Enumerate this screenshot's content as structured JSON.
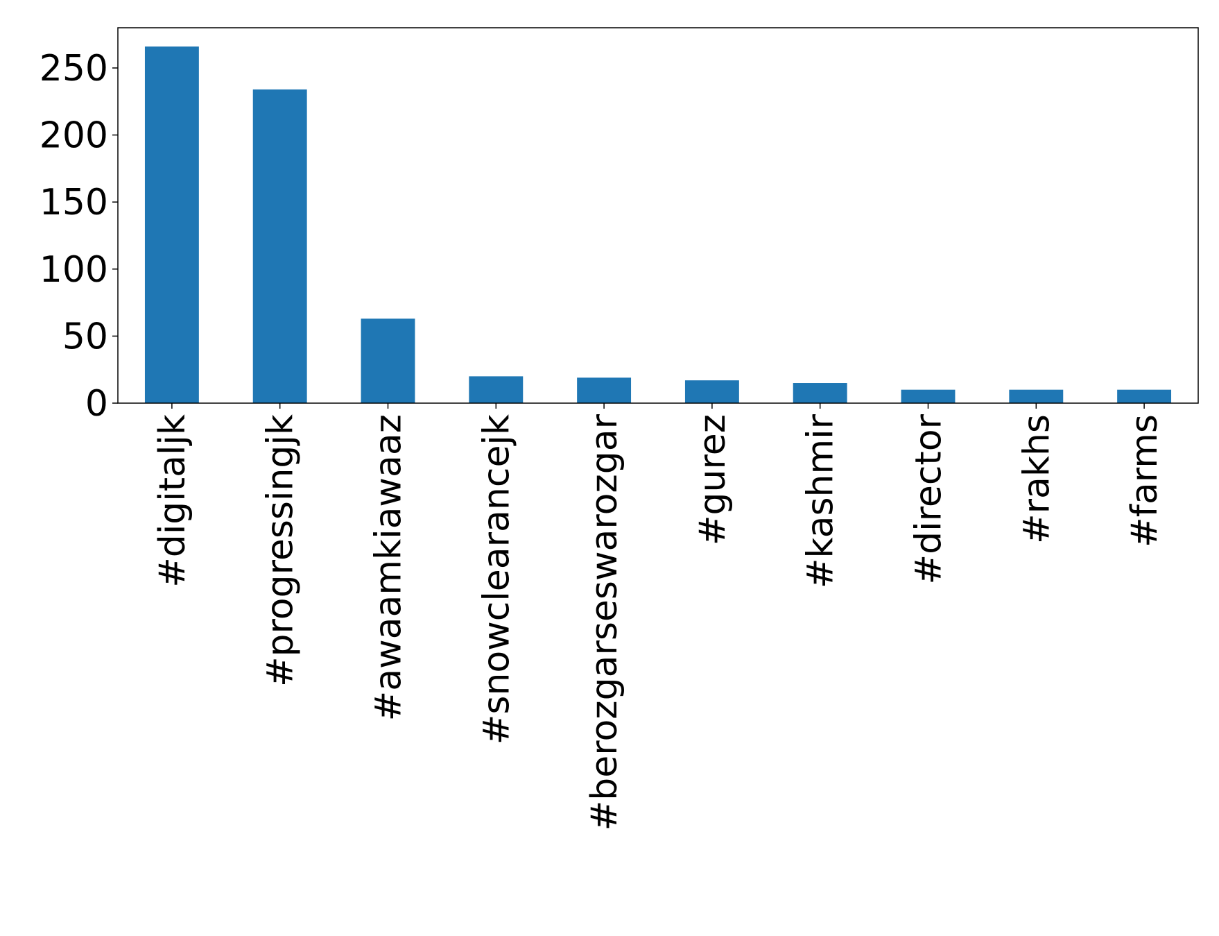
{
  "chart_data": {
    "type": "bar",
    "title": "",
    "xlabel": "",
    "ylabel": "",
    "categories": [
      "#digitaljk",
      "#progressingjk",
      "#awaamkiawaaz",
      "#snowclearancejk",
      "#berozgarseswarozgar",
      "#gurez",
      "#kashmir",
      "#director",
      "#rakhs",
      "#farms"
    ],
    "values": [
      266,
      234,
      63,
      20,
      19,
      17,
      15,
      10,
      10,
      10
    ],
    "ylim": [
      0,
      280
    ],
    "yticks": [
      0,
      50,
      100,
      150,
      200,
      250
    ],
    "grid": false,
    "legend": "none",
    "bar_color": "#1f77b4"
  }
}
